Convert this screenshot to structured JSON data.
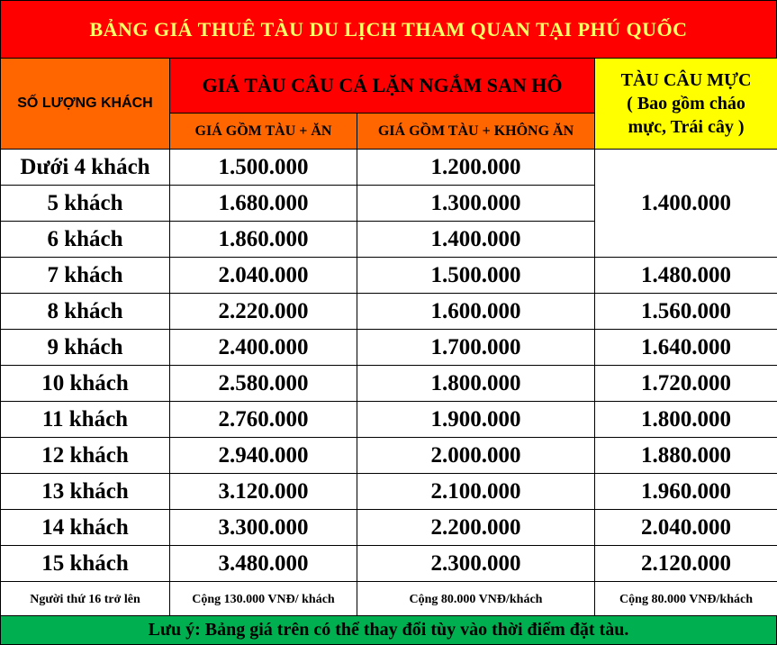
{
  "title": "BẢNG GIÁ THUÊ TÀU DU LỊCH THAM QUAN TẠI PHÚ QUỐC",
  "headers": {
    "guests": "SỐ LƯỢNG KHÁCH",
    "group": "GIÁ TÀU CÂU CÁ LẶN NGẮM SAN HÔ",
    "squid_line1": "TÀU CÂU MỰC",
    "squid_line2": "( Bao gồm cháo",
    "squid_line3": "mực, Trái cây )",
    "with_meal": "GIÁ GỒM TÀU + ĂN",
    "no_meal": "GIÁ GỒM TÀU + KHÔNG ĂN"
  },
  "rows": [
    {
      "guests": "Dưới 4 khách",
      "with_meal": "1.500.000",
      "no_meal": "1.200.000"
    },
    {
      "guests": "5 khách",
      "with_meal": "1.680.000",
      "no_meal": "1.300.000"
    },
    {
      "guests": "6 khách",
      "with_meal": "1.860.000",
      "no_meal": "1.400.000"
    },
    {
      "guests": "7 khách",
      "with_meal": "2.040.000",
      "no_meal": "1.500.000",
      "squid": "1.480.000"
    },
    {
      "guests": "8 khách",
      "with_meal": "2.220.000",
      "no_meal": "1.600.000",
      "squid": "1.560.000"
    },
    {
      "guests": "9 khách",
      "with_meal": "2.400.000",
      "no_meal": "1.700.000",
      "squid": "1.640.000"
    },
    {
      "guests": "10 khách",
      "with_meal": "2.580.000",
      "no_meal": "1.800.000",
      "squid": "1.720.000"
    },
    {
      "guests": "11 khách",
      "with_meal": "2.760.000",
      "no_meal": "1.900.000",
      "squid": "1.800.000"
    },
    {
      "guests": "12 khách",
      "with_meal": "2.940.000",
      "no_meal": "2.000.000",
      "squid": "1.880.000"
    },
    {
      "guests": "13 khách",
      "with_meal": "3.120.000",
      "no_meal": "2.100.000",
      "squid": "1.960.000"
    },
    {
      "guests": "14 khách",
      "with_meal": "3.300.000",
      "no_meal": "2.200.000",
      "squid": "2.040.000"
    },
    {
      "guests": "15 khách",
      "with_meal": "3.480.000",
      "no_meal": "2.300.000",
      "squid": "2.120.000"
    }
  ],
  "squid_merged": "1.400.000",
  "extra": {
    "label": "Người thứ 16 trở lên",
    "with_meal": "Cộng 130.000 VNĐ/ khách",
    "no_meal": "Cộng 80.000 VNĐ/khách",
    "squid": "Cộng 80.000 VNĐ/khách"
  },
  "note": "Lưu ý: Bảng giá trên có thể thay đổi tùy vào thời điểm đặt tàu.",
  "colors": {
    "red": "#ff0000",
    "orange": "#ff6600",
    "yellow": "#ffff00",
    "light_yellow_text": "#ffff66",
    "green": "#00b050"
  }
}
